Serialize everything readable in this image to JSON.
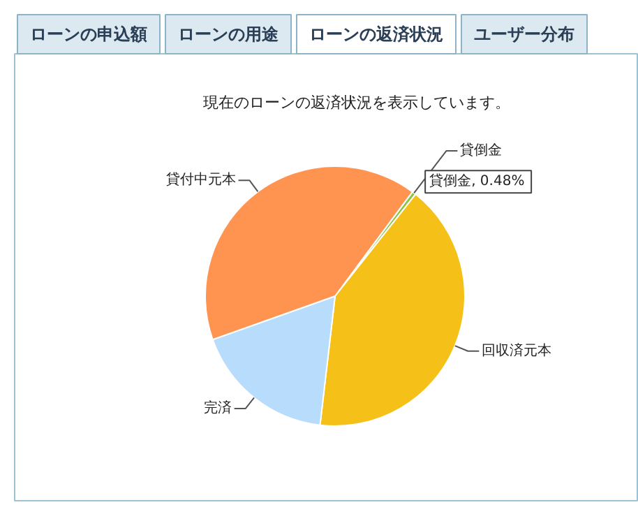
{
  "chart_data": {
    "type": "pie",
    "title": "現在のローンの返済状況を表示しています。",
    "categories": [
      "貸倒金",
      "回収済元本",
      "完済",
      "貸付中元本"
    ],
    "values": [
      0.48,
      41.2,
      17.72,
      40.6
    ],
    "colors": [
      "#8cc63e",
      "#f5c018",
      "#b8dcfc",
      "#ff9350"
    ],
    "value_labels": [
      "貸倒金, 0.48%",
      null,
      null,
      null
    ],
    "annotations": [
      "ローンの申込額",
      "ローンの用途",
      "ローンの返済状況",
      "ユーザー分布"
    ]
  }
}
